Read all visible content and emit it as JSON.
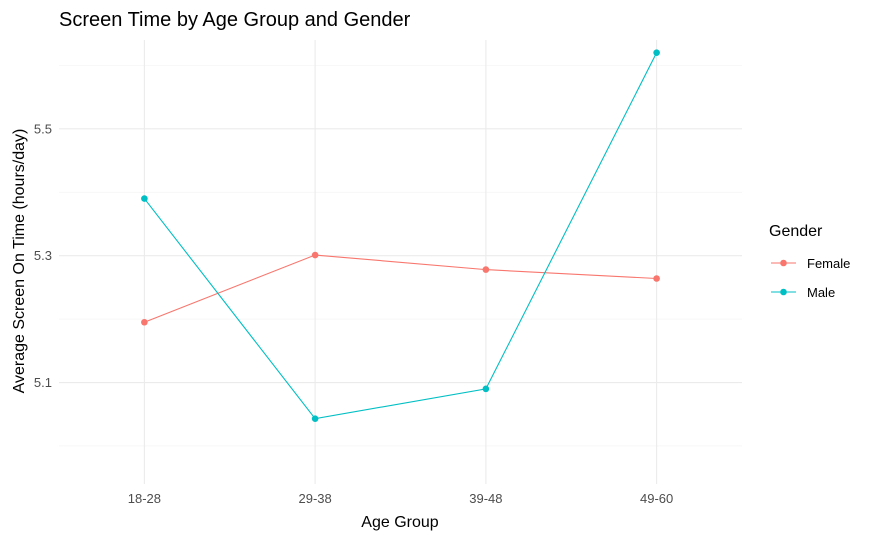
{
  "chart_data": {
    "type": "line",
    "title": "Screen Time by Age Group and Gender",
    "xlabel": "Age Group",
    "ylabel": "Average Screen On Time (hours/day)",
    "categories": [
      "18-28",
      "29-38",
      "39-48",
      "49-60"
    ],
    "ylim": [
      4.94,
      5.64
    ],
    "yticks": [
      5.1,
      5.3,
      5.5
    ],
    "yticks_labels": [
      "5.1",
      "5.3",
      "5.5"
    ],
    "grid": true,
    "legend": {
      "title": "Gender",
      "position": "right"
    },
    "series": [
      {
        "name": "Female",
        "color": "#F8766D",
        "values": [
          5.195,
          5.301,
          5.278,
          5.264
        ]
      },
      {
        "name": "Male",
        "color": "#00BFC4",
        "values": [
          5.39,
          5.043,
          5.09,
          5.62
        ]
      }
    ]
  }
}
